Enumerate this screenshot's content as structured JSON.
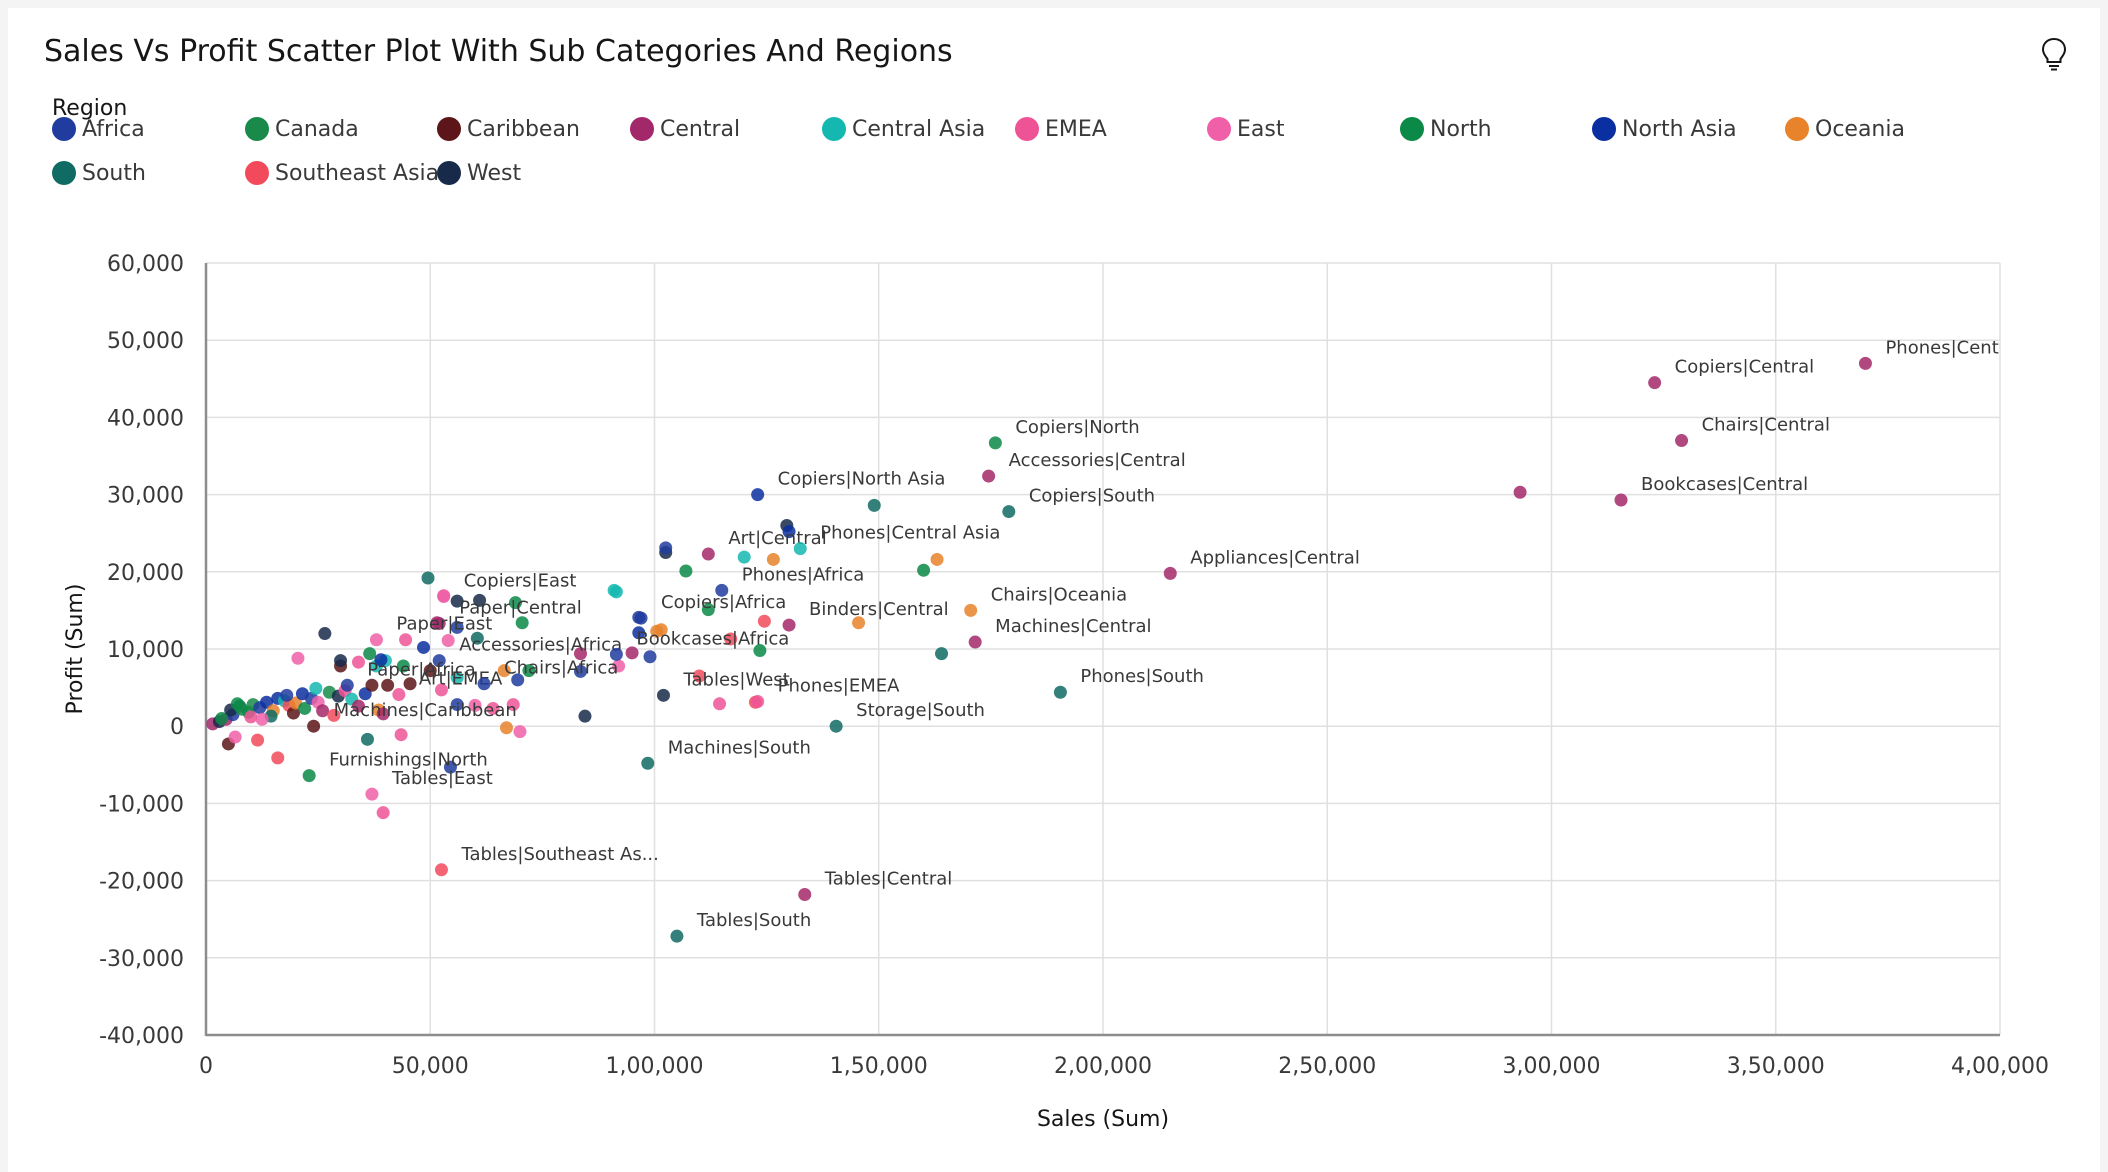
{
  "header": {
    "title": "Sales Vs Profit Scatter Plot With Sub Categories And Regions",
    "insight_icon": "lightbulb-icon"
  },
  "legend": {
    "title": "Region",
    "items": [
      {
        "label": "Africa",
        "color": "#1f3c9e"
      },
      {
        "label": "Canada",
        "color": "#198a4a"
      },
      {
        "label": "Caribbean",
        "color": "#5c1518"
      },
      {
        "label": "Central",
        "color": "#a3286a"
      },
      {
        "label": "Central Asia",
        "color": "#14b8b0"
      },
      {
        "label": "EMEA",
        "color": "#ee5396"
      },
      {
        "label": "East",
        "color": "#f060a8"
      },
      {
        "label": "North",
        "color": "#0b8a47"
      },
      {
        "label": "North Asia",
        "color": "#0a2fa0"
      },
      {
        "label": "Oceania",
        "color": "#e8832c"
      },
      {
        "label": "South",
        "color": "#0f6b63"
      },
      {
        "label": "Southeast Asia",
        "color": "#f24a5b"
      },
      {
        "label": "West",
        "color": "#172a4a"
      }
    ]
  },
  "chart_data": {
    "type": "scatter",
    "xlabel": "Sales (Sum)",
    "ylabel": "Profit (Sum)",
    "xlim": [
      0,
      400000
    ],
    "ylim": [
      -40000,
      60000
    ],
    "x_ticks": [
      0,
      50000,
      100000,
      150000,
      200000,
      250000,
      300000,
      350000,
      400000
    ],
    "x_tick_labels": [
      "0",
      "50,000",
      "1,00,000",
      "1,50,000",
      "2,00,000",
      "2,50,000",
      "3,00,000",
      "3,50,000",
      "4,00,000"
    ],
    "y_ticks": [
      60000,
      50000,
      40000,
      30000,
      20000,
      10000,
      0,
      -10000,
      -20000,
      -30000,
      -40000
    ],
    "y_tick_labels": [
      "60,000",
      "50,000",
      "40,000",
      "30,000",
      "20,000",
      "10,000",
      "0",
      "-10,000",
      "-20,000",
      "-30,000",
      "-40,000"
    ],
    "grid": true,
    "legend_position": "top",
    "labeled_points": [
      {
        "label": "Phones|Central",
        "region": "Central",
        "x": 370000,
        "y": 47000
      },
      {
        "label": "Copiers|Central",
        "region": "Central",
        "x": 323000,
        "y": 44500
      },
      {
        "label": "Chairs|Central",
        "region": "Central",
        "x": 329000,
        "y": 37000
      },
      {
        "label": "Bookcases|Central",
        "region": "Central",
        "x": 315500,
        "y": 29300
      },
      {
        "label": "Appliances|Central",
        "region": "Central",
        "x": 215000,
        "y": 19800
      },
      {
        "label": "Copiers|North",
        "region": "North",
        "x": 176000,
        "y": 36700
      },
      {
        "label": "Accessories|Central",
        "region": "Central",
        "x": 174500,
        "y": 32400
      },
      {
        "label": "Copiers|South",
        "region": "South",
        "x": 179000,
        "y": 27800
      },
      {
        "label": "Copiers|North Asia",
        "region": "North Asia",
        "x": 123000,
        "y": 30000
      },
      {
        "label": "Art|Central",
        "region": "Central",
        "x": 112000,
        "y": 22300
      },
      {
        "label": "Phones|Central Asia",
        "region": "Central Asia",
        "x": 132500,
        "y": 23000
      },
      {
        "label": "Phones|Africa",
        "region": "Africa",
        "x": 115000,
        "y": 17600
      },
      {
        "label": "Copiers|Africa",
        "region": "Africa",
        "x": 97000,
        "y": 14000
      },
      {
        "label": "Binders|Central",
        "region": "Central",
        "x": 130000,
        "y": 13100
      },
      {
        "label": "Chairs|Oceania",
        "region": "Oceania",
        "x": 170500,
        "y": 15000
      },
      {
        "label": "Machines|Central",
        "region": "Central",
        "x": 171500,
        "y": 10900
      },
      {
        "label": "Phones|South",
        "region": "South",
        "x": 190500,
        "y": 4400
      },
      {
        "label": "Copiers|East",
        "region": "East",
        "x": 53000,
        "y": 16800
      },
      {
        "label": "Paper|Central",
        "region": "Central",
        "x": 52000,
        "y": 13300
      },
      {
        "label": "Paper|East",
        "region": "East",
        "x": 38000,
        "y": 11200
      },
      {
        "label": "Accessories|Africa",
        "region": "Africa",
        "x": 52000,
        "y": 8500
      },
      {
        "label": "Bookcases|Africa",
        "region": "Africa",
        "x": 91500,
        "y": 9300
      },
      {
        "label": "Paper|Africa",
        "region": "Africa",
        "x": 31500,
        "y": 5300
      },
      {
        "label": "Art|EMEA",
        "region": "EMEA",
        "x": 43000,
        "y": 4100
      },
      {
        "label": "Chairs|Africa",
        "region": "Africa",
        "x": 62000,
        "y": 5500
      },
      {
        "label": "Tables|West",
        "region": "West",
        "x": 102000,
        "y": 4000
      },
      {
        "label": "Phones|EMEA",
        "region": "EMEA",
        "x": 123000,
        "y": 3200
      },
      {
        "label": "Storage|South",
        "region": "South",
        "x": 140500,
        "y": 0
      },
      {
        "label": "Machines|Caribbean",
        "region": "Caribbean",
        "x": 24000,
        "y": 0
      },
      {
        "label": "Furnishings|North",
        "region": "North",
        "x": 23000,
        "y": -6400
      },
      {
        "label": "Machines|South",
        "region": "South",
        "x": 98500,
        "y": -4800
      },
      {
        "label": "Tables|East",
        "region": "East",
        "x": 37000,
        "y": -8800
      },
      {
        "label": "Tables|Southeast As...",
        "region": "Southeast Asia",
        "x": 52500,
        "y": -18600
      },
      {
        "label": "Tables|Central",
        "region": "Central",
        "x": 133500,
        "y": -21800
      },
      {
        "label": "Tables|South",
        "region": "South",
        "x": 105000,
        "y": -27200
      }
    ],
    "other_points": [
      {
        "region": "Central",
        "x": 293000,
        "y": 30300
      },
      {
        "region": "South",
        "x": 149000,
        "y": 28600
      },
      {
        "region": "West",
        "x": 129500,
        "y": 26000
      },
      {
        "region": "North Asia",
        "x": 130000,
        "y": 25200
      },
      {
        "region": "West",
        "x": 102500,
        "y": 22500
      },
      {
        "region": "Africa",
        "x": 102500,
        "y": 23100
      },
      {
        "region": "Central Asia",
        "x": 120000,
        "y": 21900
      },
      {
        "region": "Oceania",
        "x": 126500,
        "y": 21600
      },
      {
        "region": "North",
        "x": 107000,
        "y": 20100
      },
      {
        "region": "North",
        "x": 160000,
        "y": 20200
      },
      {
        "region": "Oceania",
        "x": 163000,
        "y": 21600
      },
      {
        "region": "South",
        "x": 49500,
        "y": 19200
      },
      {
        "region": "Central Asia",
        "x": 91000,
        "y": 17600
      },
      {
        "region": "Central Asia",
        "x": 91500,
        "y": 17400
      },
      {
        "region": "West",
        "x": 61000,
        "y": 16300
      },
      {
        "region": "West",
        "x": 56000,
        "y": 16200
      },
      {
        "region": "EMEA",
        "x": 53000,
        "y": 16900
      },
      {
        "region": "North",
        "x": 69000,
        "y": 16000
      },
      {
        "region": "Africa",
        "x": 96500,
        "y": 14100
      },
      {
        "region": "North",
        "x": 112000,
        "y": 15100
      },
      {
        "region": "Central",
        "x": 51500,
        "y": 13400
      },
      {
        "region": "North",
        "x": 70500,
        "y": 13400
      },
      {
        "region": "Africa",
        "x": 56000,
        "y": 12800
      },
      {
        "region": "Southeast Asia",
        "x": 124500,
        "y": 13600
      },
      {
        "region": "Oceania",
        "x": 145500,
        "y": 13400
      },
      {
        "region": "North Asia",
        "x": 96500,
        "y": 12100
      },
      {
        "region": "Oceania",
        "x": 101500,
        "y": 12500
      },
      {
        "region": "Oceania",
        "x": 100500,
        "y": 12300
      },
      {
        "region": "South",
        "x": 60500,
        "y": 11400
      },
      {
        "region": "West",
        "x": 26500,
        "y": 12000
      },
      {
        "region": "EMEA",
        "x": 44500,
        "y": 11200
      },
      {
        "region": "Southeast Asia",
        "x": 117000,
        "y": 11300
      },
      {
        "region": "East",
        "x": 54000,
        "y": 11100
      },
      {
        "region": "East",
        "x": 20500,
        "y": 8800
      },
      {
        "region": "North",
        "x": 123500,
        "y": 9800
      },
      {
        "region": "South",
        "x": 164000,
        "y": 9400
      },
      {
        "region": "Central",
        "x": 83500,
        "y": 9400
      },
      {
        "region": "North Asia",
        "x": 48500,
        "y": 10200
      },
      {
        "region": "Africa",
        "x": 99000,
        "y": 9000
      },
      {
        "region": "Central",
        "x": 95000,
        "y": 9500
      },
      {
        "region": "East",
        "x": 92000,
        "y": 7800
      },
      {
        "region": "Southeast Asia",
        "x": 110000,
        "y": 6500
      },
      {
        "region": "North",
        "x": 72000,
        "y": 7200
      },
      {
        "region": "Africa",
        "x": 83500,
        "y": 7100
      },
      {
        "region": "Central Asia",
        "x": 56000,
        "y": 6300
      },
      {
        "region": "Oceania",
        "x": 66500,
        "y": 7200
      },
      {
        "region": "Caribbean",
        "x": 50000,
        "y": 7200
      },
      {
        "region": "Caribbean",
        "x": 45500,
        "y": 5500
      },
      {
        "region": "Caribbean",
        "x": 30000,
        "y": 7800
      },
      {
        "region": "West",
        "x": 30000,
        "y": 8500
      },
      {
        "region": "North",
        "x": 36500,
        "y": 9400
      },
      {
        "region": "Central Asia",
        "x": 38000,
        "y": 7800
      },
      {
        "region": "EMEA",
        "x": 34000,
        "y": 8300
      },
      {
        "region": "Central Asia",
        "x": 40000,
        "y": 8500
      },
      {
        "region": "North",
        "x": 44000,
        "y": 7800
      },
      {
        "region": "Africa",
        "x": 69500,
        "y": 6000
      },
      {
        "region": "Caribbean",
        "x": 40500,
        "y": 5300
      },
      {
        "region": "North Asia",
        "x": 39000,
        "y": 8600
      },
      {
        "region": "EMEA",
        "x": 52500,
        "y": 4700
      },
      {
        "region": "Africa",
        "x": 56000,
        "y": 2800
      },
      {
        "region": "EMEA",
        "x": 64000,
        "y": 2300
      },
      {
        "region": "EMEA",
        "x": 68500,
        "y": 2800
      },
      {
        "region": "East",
        "x": 60000,
        "y": 2700
      },
      {
        "region": "West",
        "x": 84500,
        "y": 1300
      },
      {
        "region": "Oceania",
        "x": 67000,
        "y": -200
      },
      {
        "region": "East",
        "x": 70000,
        "y": -700
      },
      {
        "region": "EMEA",
        "x": 114500,
        "y": 2900
      },
      {
        "region": "Southeast Asia",
        "x": 122500,
        "y": 3100
      },
      {
        "region": "EMEA",
        "x": 43500,
        "y": -1100
      },
      {
        "region": "South",
        "x": 36000,
        "y": -1700
      },
      {
        "region": "Southeast Asia",
        "x": 16000,
        "y": -4100
      },
      {
        "region": "Southeast Asia",
        "x": 11500,
        "y": -1800
      },
      {
        "region": "Caribbean",
        "x": 5000,
        "y": -2300
      },
      {
        "region": "East",
        "x": 6500,
        "y": -1400
      },
      {
        "region": "Africa",
        "x": 54500,
        "y": -5300
      },
      {
        "region": "EMEA",
        "x": 39500,
        "y": -11200
      },
      {
        "region": "Central",
        "x": 1500,
        "y": 300
      },
      {
        "region": "West",
        "x": 3000,
        "y": 600
      },
      {
        "region": "Central",
        "x": 4500,
        "y": 900
      },
      {
        "region": "Africa",
        "x": 6000,
        "y": 1500
      },
      {
        "region": "West",
        "x": 5500,
        "y": 2100
      },
      {
        "region": "South",
        "x": 7500,
        "y": 2600
      },
      {
        "region": "Canada",
        "x": 8000,
        "y": 2200
      },
      {
        "region": "North",
        "x": 9500,
        "y": 1800
      },
      {
        "region": "EMEA",
        "x": 10000,
        "y": 1200
      },
      {
        "region": "Canada",
        "x": 10500,
        "y": 2800
      },
      {
        "region": "Africa",
        "x": 12000,
        "y": 2400
      },
      {
        "region": "North Asia",
        "x": 13500,
        "y": 3100
      },
      {
        "region": "Oceania",
        "x": 15000,
        "y": 2000
      },
      {
        "region": "South",
        "x": 14500,
        "y": 1300
      },
      {
        "region": "North Asia",
        "x": 16000,
        "y": 3600
      },
      {
        "region": "Central Asia",
        "x": 17500,
        "y": 3300
      },
      {
        "region": "Southeast Asia",
        "x": 18500,
        "y": 2700
      },
      {
        "region": "Caribbean",
        "x": 19500,
        "y": 1700
      },
      {
        "region": "Oceania",
        "x": 20000,
        "y": 3000
      },
      {
        "region": "North Asia",
        "x": 21500,
        "y": 4200
      },
      {
        "region": "North",
        "x": 22000,
        "y": 2300
      },
      {
        "region": "Africa",
        "x": 23500,
        "y": 3600
      },
      {
        "region": "East",
        "x": 25000,
        "y": 3100
      },
      {
        "region": "Central",
        "x": 26000,
        "y": 2000
      },
      {
        "region": "Canada",
        "x": 27500,
        "y": 4400
      },
      {
        "region": "Southeast Asia",
        "x": 28500,
        "y": 1400
      },
      {
        "region": "West",
        "x": 29500,
        "y": 3900
      },
      {
        "region": "EMEA",
        "x": 31000,
        "y": 4600
      },
      {
        "region": "Central Asia",
        "x": 32500,
        "y": 3500
      },
      {
        "region": "Central",
        "x": 34000,
        "y": 2600
      },
      {
        "region": "North Asia",
        "x": 35500,
        "y": 4200
      },
      {
        "region": "Caribbean",
        "x": 37000,
        "y": 5300
      },
      {
        "region": "Oceania",
        "x": 38500,
        "y": 2100
      },
      {
        "region": "Central",
        "x": 39500,
        "y": 1600
      },
      {
        "region": "North",
        "x": 3500,
        "y": 1000
      },
      {
        "region": "North",
        "x": 7000,
        "y": 2900
      },
      {
        "region": "East",
        "x": 12500,
        "y": 900
      },
      {
        "region": "Africa",
        "x": 18000,
        "y": 4000
      },
      {
        "region": "Central Asia",
        "x": 24500,
        "y": 4900
      }
    ]
  }
}
